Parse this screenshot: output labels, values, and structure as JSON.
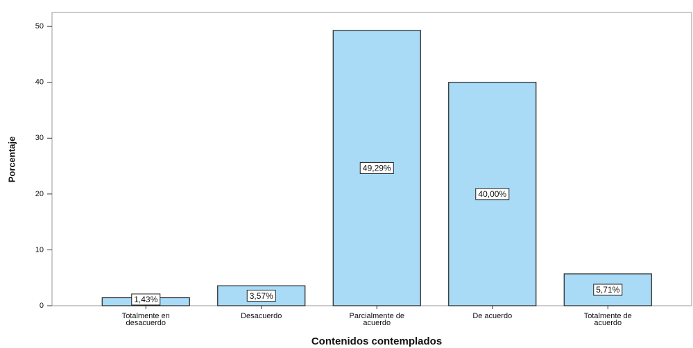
{
  "chart_data": {
    "type": "bar",
    "x_label": "Contenidos contemplados",
    "y_label": "Porcentaje",
    "categories": [
      "Totalmente en\ndesacuerdo",
      "Desacuerdo",
      "Parcialmente de\nacuerdo",
      "De acuerdo",
      "Totalmente de\nacuerdo"
    ],
    "values": [
      1.43,
      3.57,
      49.29,
      40.0,
      5.71
    ],
    "value_labels": [
      "1,43%",
      "3,57%",
      "49,29%",
      "40,00%",
      "5,71%"
    ],
    "color": "#a9daf6",
    "ylim": [
      0,
      52.5
    ],
    "yticks": [
      0,
      10,
      20,
      30,
      40,
      50
    ],
    "grid": false
  }
}
